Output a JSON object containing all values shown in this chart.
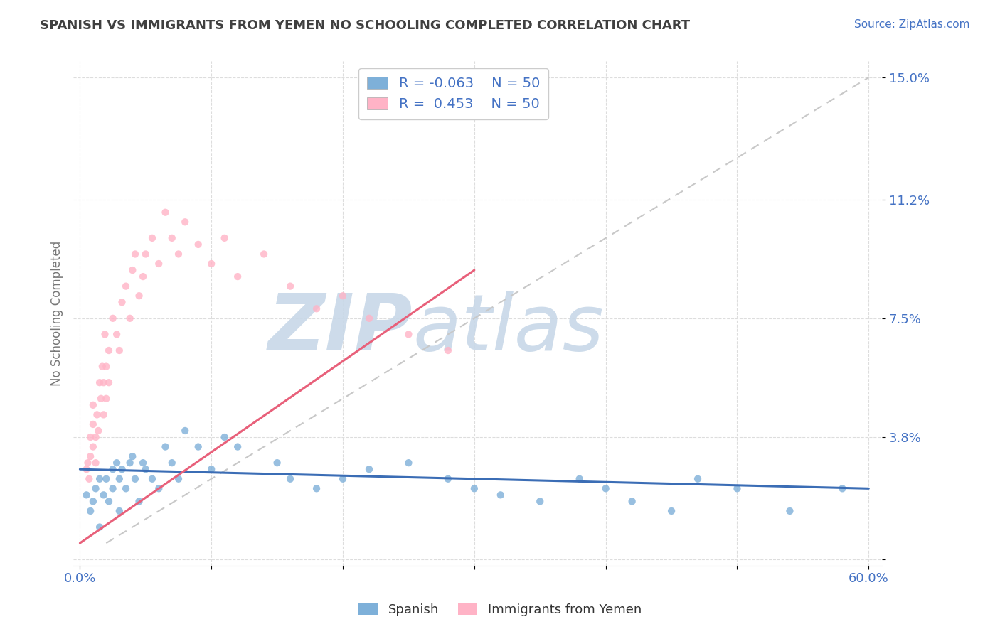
{
  "title": "SPANISH VS IMMIGRANTS FROM YEMEN NO SCHOOLING COMPLETED CORRELATION CHART",
  "source_text": "Source: ZipAtlas.com",
  "ylabel": "No Schooling Completed",
  "yticks": [
    0.0,
    0.038,
    0.075,
    0.112,
    0.15
  ],
  "ytick_labels": [
    "",
    "3.8%",
    "7.5%",
    "11.2%",
    "15.0%"
  ],
  "xticks": [
    0.0,
    0.1,
    0.2,
    0.3,
    0.4,
    0.5,
    0.6
  ],
  "xtick_labels": [
    "0.0%",
    "",
    "",
    "",
    "",
    "",
    "60.0%"
  ],
  "xlim": [
    -0.005,
    0.61
  ],
  "ylim": [
    -0.002,
    0.155
  ],
  "color_blue": "#7EB0D9",
  "color_pink": "#FFB3C6",
  "color_trend_blue": "#3B6DB5",
  "color_trend_pink": "#E8607A",
  "color_diag": "#C8C8C8",
  "color_axis_labels": "#4472C4",
  "color_title": "#404040",
  "watermark_zip": "ZIP",
  "watermark_atlas": "atlas",
  "watermark_color_zip": "#C5D5E8",
  "watermark_color_atlas": "#C5D5E8",
  "spanish_x": [
    0.005,
    0.008,
    0.01,
    0.012,
    0.015,
    0.015,
    0.018,
    0.02,
    0.022,
    0.025,
    0.025,
    0.028,
    0.03,
    0.03,
    0.032,
    0.035,
    0.038,
    0.04,
    0.042,
    0.045,
    0.048,
    0.05,
    0.055,
    0.06,
    0.065,
    0.07,
    0.075,
    0.08,
    0.09,
    0.1,
    0.11,
    0.12,
    0.15,
    0.16,
    0.18,
    0.2,
    0.22,
    0.25,
    0.28,
    0.3,
    0.32,
    0.35,
    0.38,
    0.4,
    0.42,
    0.45,
    0.47,
    0.5,
    0.54,
    0.58
  ],
  "spanish_y": [
    0.02,
    0.015,
    0.018,
    0.022,
    0.025,
    0.01,
    0.02,
    0.025,
    0.018,
    0.028,
    0.022,
    0.03,
    0.015,
    0.025,
    0.028,
    0.022,
    0.03,
    0.032,
    0.025,
    0.018,
    0.03,
    0.028,
    0.025,
    0.022,
    0.035,
    0.03,
    0.025,
    0.04,
    0.035,
    0.028,
    0.038,
    0.035,
    0.03,
    0.025,
    0.022,
    0.025,
    0.028,
    0.03,
    0.025,
    0.022,
    0.02,
    0.018,
    0.025,
    0.022,
    0.018,
    0.015,
    0.025,
    0.022,
    0.015,
    0.022
  ],
  "yemen_x": [
    0.005,
    0.006,
    0.007,
    0.008,
    0.008,
    0.01,
    0.01,
    0.01,
    0.012,
    0.012,
    0.013,
    0.014,
    0.015,
    0.016,
    0.017,
    0.018,
    0.018,
    0.019,
    0.02,
    0.02,
    0.022,
    0.022,
    0.025,
    0.028,
    0.03,
    0.032,
    0.035,
    0.038,
    0.04,
    0.042,
    0.045,
    0.048,
    0.05,
    0.055,
    0.06,
    0.065,
    0.07,
    0.075,
    0.08,
    0.09,
    0.1,
    0.11,
    0.12,
    0.14,
    0.16,
    0.18,
    0.2,
    0.22,
    0.25,
    0.28
  ],
  "yemen_y": [
    0.028,
    0.03,
    0.025,
    0.032,
    0.038,
    0.035,
    0.042,
    0.048,
    0.03,
    0.038,
    0.045,
    0.04,
    0.055,
    0.05,
    0.06,
    0.045,
    0.055,
    0.07,
    0.05,
    0.06,
    0.065,
    0.055,
    0.075,
    0.07,
    0.065,
    0.08,
    0.085,
    0.075,
    0.09,
    0.095,
    0.082,
    0.088,
    0.095,
    0.1,
    0.092,
    0.108,
    0.1,
    0.095,
    0.105,
    0.098,
    0.092,
    0.1,
    0.088,
    0.095,
    0.085,
    0.078,
    0.082,
    0.075,
    0.07,
    0.065
  ],
  "trend_blue_x0": 0.0,
  "trend_blue_y0": 0.028,
  "trend_blue_x1": 0.6,
  "trend_blue_y1": 0.022,
  "trend_pink_x0": 0.0,
  "trend_pink_y0": 0.005,
  "trend_pink_x1": 0.3,
  "trend_pink_y1": 0.09
}
